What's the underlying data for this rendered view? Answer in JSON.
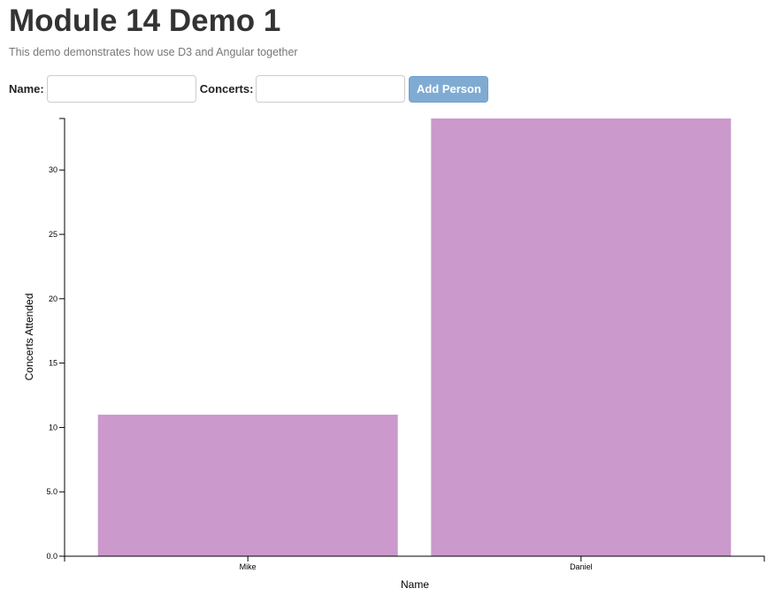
{
  "header": {
    "title": "Module 14 Demo 1",
    "subtitle": "This demo demonstrates how use D3 and Angular together"
  },
  "form": {
    "name_label": "Name:",
    "name_value": "",
    "concerts_label": "Concerts:",
    "concerts_value": "",
    "add_button_label": "Add Person"
  },
  "colors": {
    "bar": "#cb99cc",
    "button": "#7fabd3"
  },
  "chart_data": {
    "type": "bar",
    "categories": [
      "Mike",
      "Daniel"
    ],
    "values": [
      11,
      34
    ],
    "title": "",
    "xlabel": "Name",
    "ylabel": "Concerts Attended",
    "ylim": [
      0,
      34
    ],
    "yticks": [
      0,
      5,
      10,
      15,
      20,
      25,
      30
    ],
    "ytick_labels": [
      "0.0",
      "5.0",
      "10",
      "15",
      "20",
      "25",
      "30"
    ],
    "grid": false
  }
}
